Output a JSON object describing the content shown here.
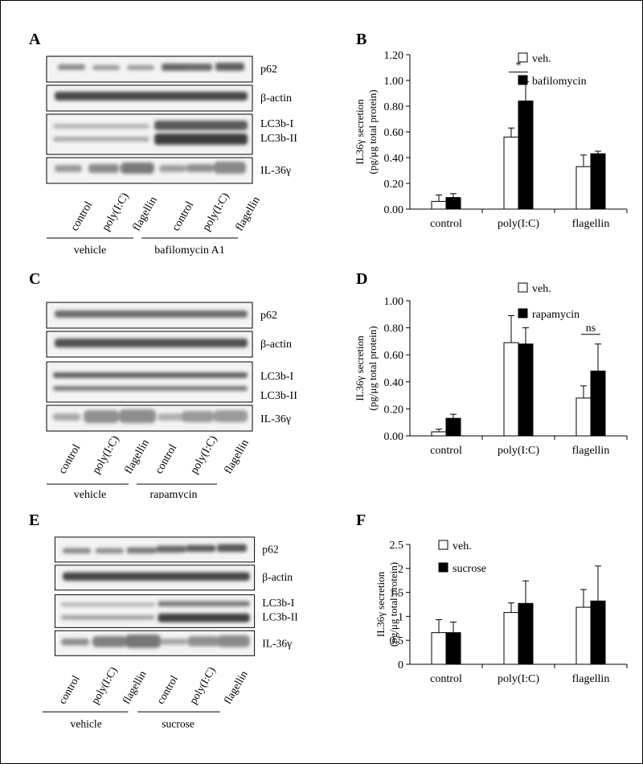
{
  "figure": {
    "panel_letters": [
      "A",
      "B",
      "C",
      "D",
      "E",
      "F"
    ],
    "blot_rows": [
      "p62",
      "β-actin",
      "LC3b-I",
      "LC3b-II",
      "IL-36γ"
    ],
    "lane_labels": [
      "control",
      "poly(I:C)",
      "flagellin",
      "control",
      "poly(I:C)",
      "flagellin"
    ],
    "blot_A_groups": [
      "vehicle",
      "bafilomycin A1"
    ],
    "blot_C_groups": [
      "vehicle",
      "rapamycin"
    ],
    "blot_E_groups": [
      "vehicle",
      "sucrose"
    ]
  },
  "chart_data": [
    {
      "panel": "B",
      "type": "bar",
      "ylabel_line1": "IL36γ secretion",
      "ylabel_line2": "(pg/μg total protein)",
      "categories": [
        "control",
        "poly(I:C)",
        "flagellin"
      ],
      "ylim": [
        0,
        1.2
      ],
      "yticks": [
        "0.00",
        "0.20",
        "0.40",
        "0.60",
        "0.80",
        "1.00",
        "1.20"
      ],
      "series": [
        {
          "name": "veh.",
          "values": [
            0.06,
            0.56,
            0.33
          ],
          "errors": [
            0.05,
            0.07,
            0.09
          ],
          "color": "#ffffff"
        },
        {
          "name": "bafilomycin",
          "values": [
            0.09,
            0.84,
            0.43
          ],
          "errors": [
            0.03,
            0.15,
            0.02
          ],
          "color": "#000000"
        }
      ],
      "annotations": [
        {
          "text": "*",
          "category": 1
        }
      ]
    },
    {
      "panel": "D",
      "type": "bar",
      "ylabel_line1": "IL36γ secretion",
      "ylabel_line2": "(pg/μg total protein)",
      "categories": [
        "control",
        "poly(I:C)",
        "flagellin"
      ],
      "ylim": [
        0,
        1.0
      ],
      "yticks": [
        "0.00",
        "0.20",
        "0.40",
        "0.60",
        "0.80",
        "1.00"
      ],
      "series": [
        {
          "name": "veh.",
          "values": [
            0.03,
            0.69,
            0.28
          ],
          "errors": [
            0.02,
            0.2,
            0.09
          ],
          "color": "#ffffff"
        },
        {
          "name": "rapamycin",
          "values": [
            0.13,
            0.68,
            0.48
          ],
          "errors": [
            0.03,
            0.12,
            0.2
          ],
          "color": "#000000"
        }
      ],
      "annotations": [
        {
          "text": "ns",
          "category": 2
        }
      ]
    },
    {
      "panel": "F",
      "type": "bar",
      "ylabel_line1": "IL36γ secretion",
      "ylabel_line2": "(pg/μg total protein)",
      "categories": [
        "control",
        "poly(I:C)",
        "flagellin"
      ],
      "ylim": [
        0,
        2.5
      ],
      "yticks": [
        "0",
        "0.5",
        "1",
        "1.5",
        "2",
        "2.5"
      ],
      "series": [
        {
          "name": "veh.",
          "values": [
            0.66,
            1.08,
            1.19
          ],
          "errors": [
            0.27,
            0.2,
            0.37
          ],
          "color": "#ffffff"
        },
        {
          "name": "sucrose",
          "values": [
            0.66,
            1.27,
            1.32
          ],
          "errors": [
            0.22,
            0.47,
            0.73
          ],
          "color": "#000000"
        }
      ],
      "annotations": []
    }
  ]
}
